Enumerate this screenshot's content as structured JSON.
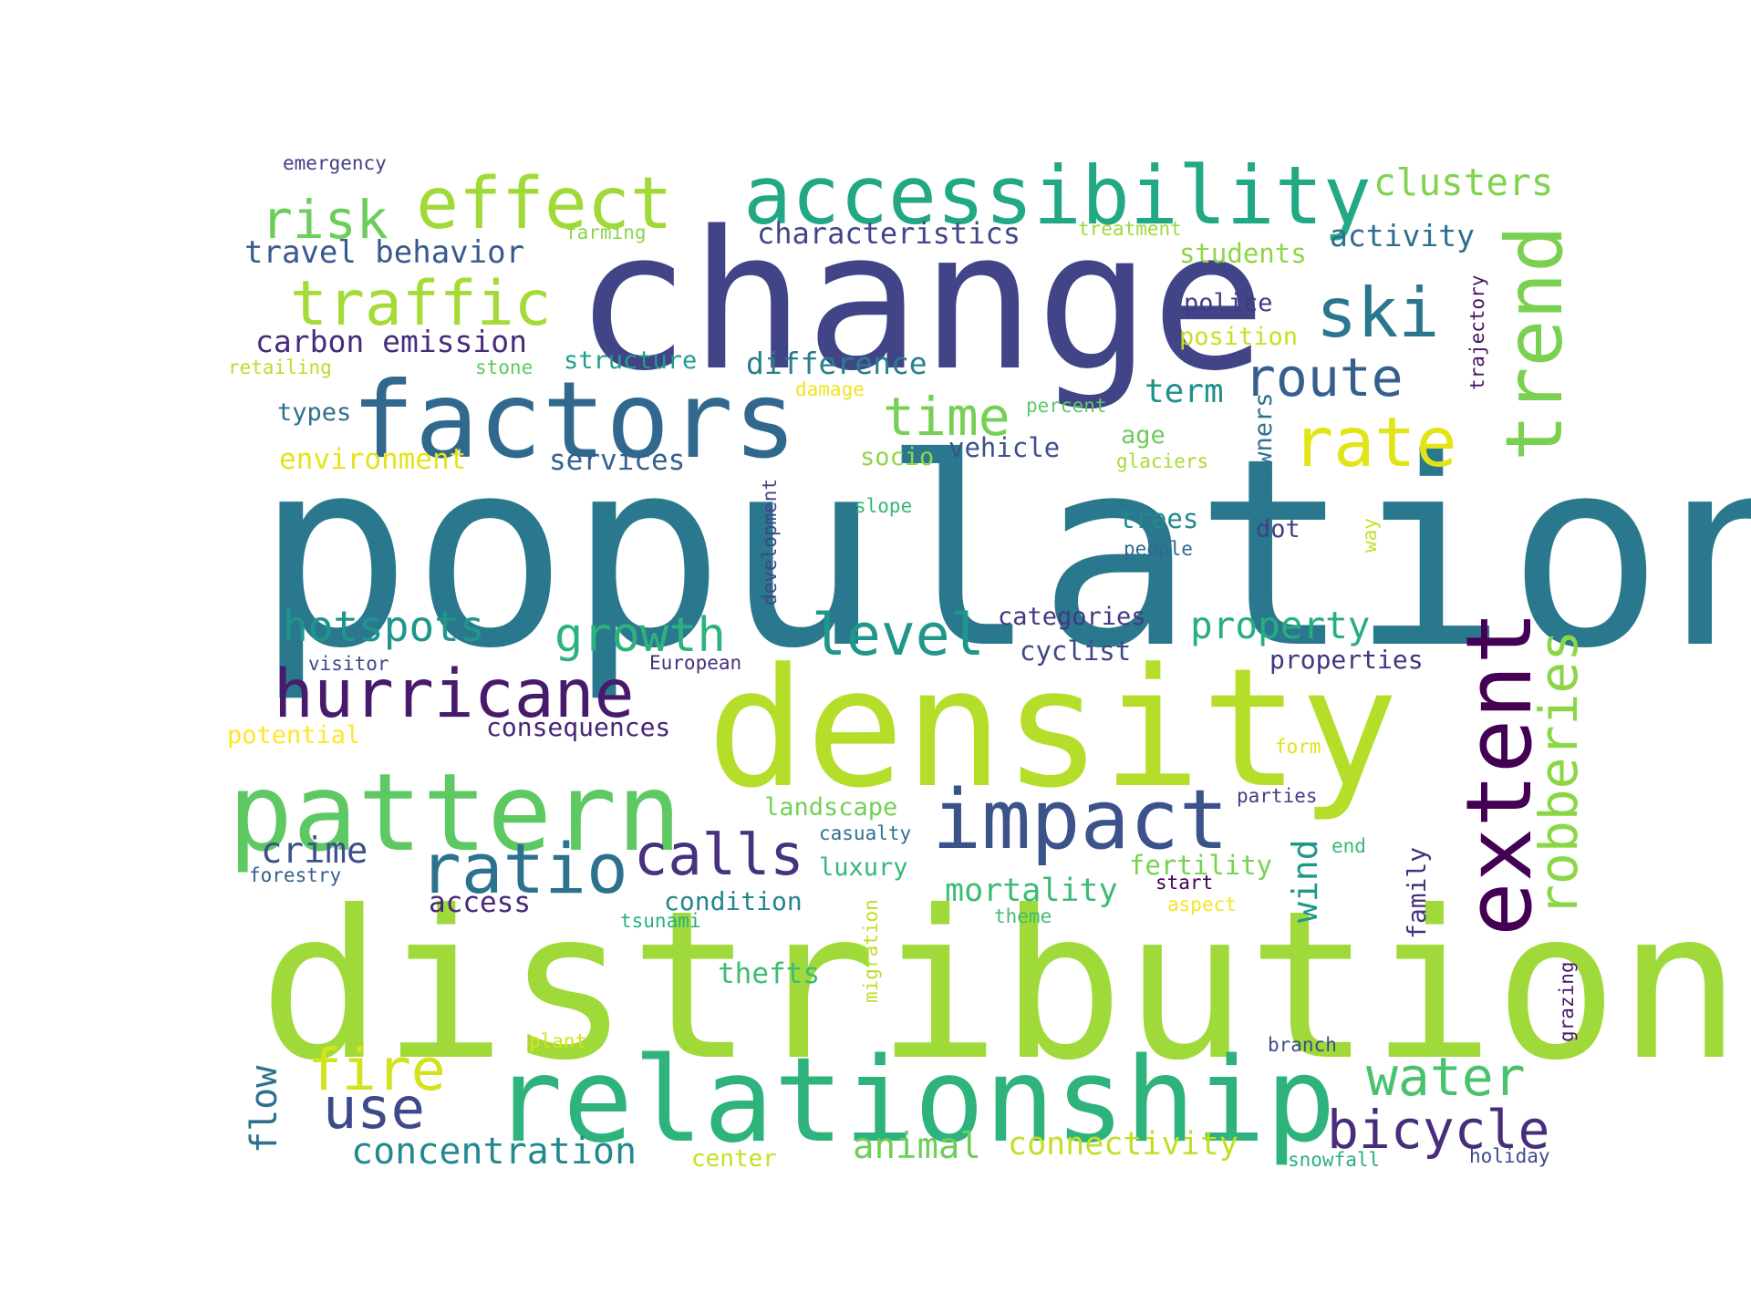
{
  "words": [
    {
      "text": "population",
      "color": "#2a788e"
    },
    {
      "text": "distribution",
      "color": "#9fda3a"
    },
    {
      "text": "change",
      "color": "#414487"
    },
    {
      "text": "density",
      "color": "#b5de2b"
    },
    {
      "text": "relationship",
      "color": "#2eb37c"
    },
    {
      "text": "factors",
      "color": "#31688e"
    },
    {
      "text": "pattern",
      "color": "#5ec962"
    },
    {
      "text": "accessibility",
      "color": "#22a884"
    },
    {
      "text": "extent",
      "color": "#440154"
    },
    {
      "text": "impact",
      "color": "#3b528b"
    },
    {
      "text": "trend",
      "color": "#7ad151"
    },
    {
      "text": "effect",
      "color": "#a0da39"
    },
    {
      "text": "ratio",
      "color": "#2c728e"
    },
    {
      "text": "hurricane",
      "color": "#481a6c"
    },
    {
      "text": "traffic",
      "color": "#a5db36"
    },
    {
      "text": "ski",
      "color": "#2a768e"
    },
    {
      "text": "rate",
      "color": "#e2e418"
    },
    {
      "text": "robberies",
      "color": "#8bd646"
    },
    {
      "text": "calls",
      "color": "#46327e"
    },
    {
      "text": "route",
      "color": "#35608d"
    },
    {
      "text": "water",
      "color": "#4ac16d"
    },
    {
      "text": "bicycle",
      "color": "#472d7b"
    },
    {
      "text": "level",
      "color": "#1f978b"
    },
    {
      "text": "risk",
      "color": "#6ccd5a"
    },
    {
      "text": "time",
      "color": "#75d054"
    },
    {
      "text": "use",
      "color": "#3e4989"
    },
    {
      "text": "fire",
      "color": "#d2e21b"
    },
    {
      "text": "growth",
      "color": "#2db27d"
    },
    {
      "text": "hotspots",
      "color": "#1f958b"
    },
    {
      "text": "concentration",
      "color": "#23898e"
    },
    {
      "text": "animal",
      "color": "#6ece58"
    },
    {
      "text": "property",
      "color": "#27ad81"
    },
    {
      "text": "clusters",
      "color": "#7fd34e"
    },
    {
      "text": "connectivity",
      "color": "#c0df25"
    },
    {
      "text": "crime",
      "color": "#3b518b"
    },
    {
      "text": "flow",
      "color": "#2c718e"
    },
    {
      "text": "wind",
      "color": "#1f988b"
    },
    {
      "text": "travel behavior",
      "color": "#38598c"
    },
    {
      "text": "carbon emission",
      "color": "#472c7a"
    },
    {
      "text": "characteristics",
      "color": "#404688"
    },
    {
      "text": "difference",
      "color": "#277f8e"
    },
    {
      "text": "mortality",
      "color": "#3bbb75"
    },
    {
      "text": "term",
      "color": "#21918c"
    },
    {
      "text": "activity",
      "color": "#2e6e8e"
    },
    {
      "text": "environment",
      "color": "#e5e419"
    },
    {
      "text": "services",
      "color": "#34618d"
    },
    {
      "text": "access",
      "color": "#482979"
    },
    {
      "text": "condition",
      "color": "#25848e"
    },
    {
      "text": "consequences",
      "color": "#482576"
    },
    {
      "text": "students",
      "color": "#8ed645"
    },
    {
      "text": "landscape",
      "color": "#73d056"
    },
    {
      "text": "luxury",
      "color": "#35b779"
    },
    {
      "text": "fertility",
      "color": "#7ad151"
    },
    {
      "text": "thefts",
      "color": "#3dbc74"
    },
    {
      "text": "categories",
      "color": "#453781"
    },
    {
      "text": "cyclist",
      "color": "#3f4788"
    },
    {
      "text": "properties",
      "color": "#463480"
    },
    {
      "text": "structure",
      "color": "#1f9e89"
    },
    {
      "text": "police",
      "color": "#443a83"
    },
    {
      "text": "position",
      "color": "#c8e020"
    },
    {
      "text": "vehicle",
      "color": "#3b528b"
    },
    {
      "text": "owners",
      "color": "#2c728e"
    },
    {
      "text": "socio",
      "color": "#8fd744"
    },
    {
      "text": "age",
      "color": "#6ccd5a"
    },
    {
      "text": "trees",
      "color": "#23898e"
    },
    {
      "text": "dot",
      "color": "#424086"
    },
    {
      "text": "types",
      "color": "#2d708e"
    },
    {
      "text": "potential",
      "color": "#fde725"
    },
    {
      "text": "family",
      "color": "#46327e"
    },
    {
      "text": "emergency",
      "color": "#424086"
    },
    {
      "text": "treatment",
      "color": "#9dd93b"
    },
    {
      "text": "farming",
      "color": "#8bd646"
    },
    {
      "text": "retailing",
      "color": "#b8de29"
    },
    {
      "text": "stone",
      "color": "#5ec962"
    },
    {
      "text": "damage",
      "color": "#f1e51d"
    },
    {
      "text": "percent",
      "color": "#5ec962"
    },
    {
      "text": "glaciers",
      "color": "#a8db34"
    },
    {
      "text": "development",
      "color": "#414487"
    },
    {
      "text": "slope",
      "color": "#35b779"
    },
    {
      "text": "people",
      "color": "#30698e"
    },
    {
      "text": "way",
      "color": "#c2df23"
    },
    {
      "text": "trajectory",
      "color": "#471164"
    },
    {
      "text": "visitor",
      "color": "#3e4989"
    },
    {
      "text": "European",
      "color": "#46307e"
    },
    {
      "text": "form",
      "color": "#dfe318"
    },
    {
      "text": "parties",
      "color": "#433e85"
    },
    {
      "text": "casualty",
      "color": "#2c728e"
    },
    {
      "text": "end",
      "color": "#3aba76"
    },
    {
      "text": "forestry",
      "color": "#355f8d"
    },
    {
      "text": "start",
      "color": "#440154"
    },
    {
      "text": "aspect",
      "color": "#f4e61e"
    },
    {
      "text": "theme",
      "color": "#40bd72"
    },
    {
      "text": "tsunami",
      "color": "#29af7f"
    },
    {
      "text": "migration",
      "color": "#bddf26"
    },
    {
      "text": "grazing",
      "color": "#481769"
    },
    {
      "text": "plant",
      "color": "#d8e219"
    },
    {
      "text": "branch",
      "color": "#3e4a89"
    },
    {
      "text": "center",
      "color": "#c5e021"
    },
    {
      "text": "snowfall",
      "color": "#29af7f"
    },
    {
      "text": "holiday",
      "color": "#3e4989"
    }
  ]
}
